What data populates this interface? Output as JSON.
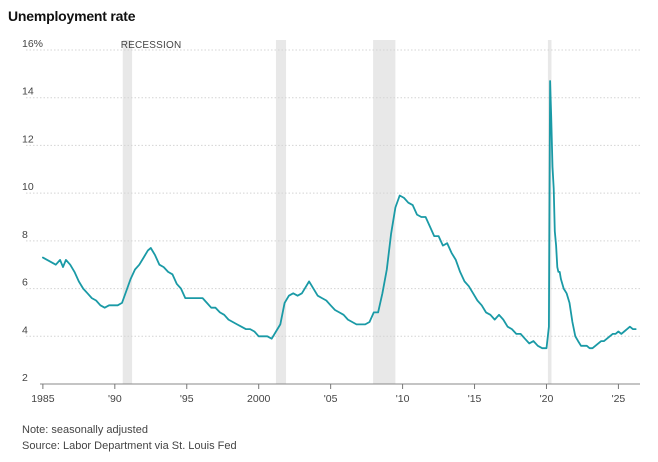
{
  "chart_data": {
    "type": "line",
    "title": "Unemployment rate",
    "ylabel": "",
    "xlabel": "",
    "ylim": [
      2,
      16
    ],
    "xlim": [
      1984.8,
      2026.5
    ],
    "grid": true,
    "y_ticks": [
      {
        "value": 16,
        "label": "16%"
      },
      {
        "value": 14,
        "label": "14"
      },
      {
        "value": 12,
        "label": "12"
      },
      {
        "value": 10,
        "label": "10"
      },
      {
        "value": 8,
        "label": "8"
      },
      {
        "value": 6,
        "label": "6"
      },
      {
        "value": 4,
        "label": "4"
      },
      {
        "value": 2,
        "label": "2"
      }
    ],
    "x_ticks": [
      {
        "value": 1985,
        "label": "1985"
      },
      {
        "value": 1990,
        "label": "'90"
      },
      {
        "value": 1995,
        "label": "'95"
      },
      {
        "value": 2000,
        "label": "2000"
      },
      {
        "value": 2005,
        "label": "'05"
      },
      {
        "value": 2010,
        "label": "'10"
      },
      {
        "value": 2015,
        "label": "'15"
      },
      {
        "value": 2020,
        "label": "'20"
      },
      {
        "value": 2025,
        "label": "'25"
      }
    ],
    "recession_label": "RECESSION",
    "recessions": [
      {
        "start": 1990.55,
        "end": 1991.2
      },
      {
        "start": 2001.2,
        "end": 2001.9
      },
      {
        "start": 2007.95,
        "end": 2009.5
      },
      {
        "start": 2020.1,
        "end": 2020.35
      }
    ],
    "series": [
      {
        "color": "#1a9aa6",
        "x": [
          1985.0,
          1985.3,
          1985.6,
          1985.9,
          1986.2,
          1986.4,
          1986.6,
          1986.9,
          1987.2,
          1987.5,
          1987.8,
          1988.1,
          1988.4,
          1988.7,
          1989.0,
          1989.3,
          1989.6,
          1989.9,
          1990.2,
          1990.5,
          1990.8,
          1991.1,
          1991.4,
          1991.7,
          1992.0,
          1992.3,
          1992.5,
          1992.8,
          1993.1,
          1993.4,
          1993.7,
          1994.0,
          1994.3,
          1994.6,
          1994.9,
          1995.2,
          1995.5,
          1995.8,
          1996.1,
          1996.4,
          1996.7,
          1997.0,
          1997.3,
          1997.6,
          1997.9,
          1998.2,
          1998.5,
          1998.8,
          1999.1,
          1999.4,
          1999.7,
          2000.0,
          2000.3,
          2000.6,
          2000.9,
          2001.2,
          2001.5,
          2001.8,
          2002.1,
          2002.4,
          2002.7,
          2003.0,
          2003.3,
          2003.5,
          2003.8,
          2004.1,
          2004.4,
          2004.7,
          2005.0,
          2005.3,
          2005.6,
          2005.9,
          2006.2,
          2006.5,
          2006.8,
          2007.1,
          2007.4,
          2007.7,
          2008.0,
          2008.3,
          2008.6,
          2008.9,
          2009.2,
          2009.5,
          2009.8,
          2010.1,
          2010.4,
          2010.7,
          2011.0,
          2011.3,
          2011.6,
          2011.9,
          2012.2,
          2012.5,
          2012.8,
          2013.1,
          2013.4,
          2013.7,
          2014.0,
          2014.3,
          2014.6,
          2014.9,
          2015.2,
          2015.5,
          2015.8,
          2016.1,
          2016.4,
          2016.7,
          2017.0,
          2017.3,
          2017.6,
          2017.9,
          2018.2,
          2018.5,
          2018.8,
          2019.1,
          2019.4,
          2019.7,
          2020.0,
          2020.17,
          2020.25,
          2020.33,
          2020.42,
          2020.5,
          2020.58,
          2020.67,
          2020.75,
          2020.83,
          2020.92,
          2021.0,
          2021.2,
          2021.4,
          2021.6,
          2021.8,
          2022.0,
          2022.2,
          2022.4,
          2022.6,
          2022.8,
          2023.0,
          2023.2,
          2023.4,
          2023.6,
          2023.8,
          2024.0,
          2024.2,
          2024.4,
          2024.6,
          2024.8,
          2025.0,
          2025.2,
          2025.4,
          2025.6,
          2025.8,
          2026.0,
          2026.2
        ],
        "y": [
          7.3,
          7.2,
          7.1,
          7.0,
          7.2,
          6.9,
          7.2,
          7.0,
          6.7,
          6.3,
          6.0,
          5.8,
          5.6,
          5.5,
          5.3,
          5.2,
          5.3,
          5.3,
          5.3,
          5.4,
          5.9,
          6.4,
          6.8,
          7.0,
          7.3,
          7.6,
          7.7,
          7.4,
          7.0,
          6.9,
          6.7,
          6.6,
          6.2,
          6.0,
          5.6,
          5.6,
          5.6,
          5.6,
          5.6,
          5.4,
          5.2,
          5.2,
          5.0,
          4.9,
          4.7,
          4.6,
          4.5,
          4.4,
          4.3,
          4.3,
          4.2,
          4.0,
          4.0,
          4.0,
          3.9,
          4.2,
          4.5,
          5.4,
          5.7,
          5.8,
          5.7,
          5.8,
          6.1,
          6.3,
          6.0,
          5.7,
          5.6,
          5.5,
          5.3,
          5.1,
          5.0,
          4.9,
          4.7,
          4.6,
          4.5,
          4.5,
          4.5,
          4.6,
          5.0,
          5.0,
          5.8,
          6.8,
          8.3,
          9.4,
          9.9,
          9.8,
          9.6,
          9.5,
          9.1,
          9.0,
          9.0,
          8.6,
          8.2,
          8.2,
          7.8,
          7.9,
          7.5,
          7.2,
          6.7,
          6.3,
          6.1,
          5.8,
          5.5,
          5.3,
          5.0,
          4.9,
          4.7,
          4.9,
          4.7,
          4.4,
          4.3,
          4.1,
          4.1,
          3.9,
          3.7,
          3.8,
          3.6,
          3.5,
          3.5,
          4.4,
          14.7,
          13.2,
          11.1,
          10.2,
          8.4,
          7.8,
          6.9,
          6.7,
          6.7,
          6.4,
          6.0,
          5.8,
          5.4,
          4.6,
          4.0,
          3.8,
          3.6,
          3.6,
          3.6,
          3.5,
          3.5,
          3.6,
          3.7,
          3.8,
          3.8,
          3.9,
          4.0,
          4.1,
          4.1,
          4.2,
          4.1,
          4.2,
          4.3,
          4.4,
          4.3,
          4.3
        ]
      }
    ]
  },
  "note": "Note: seasonally adjusted",
  "source": "Source: Labor Department via St. Louis Fed"
}
